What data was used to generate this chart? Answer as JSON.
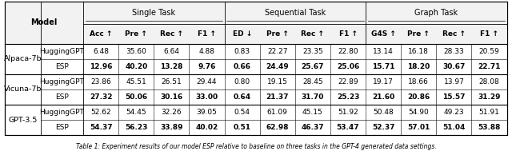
{
  "col_headers": [
    "Acc ↑",
    "Pre ↑",
    "Rec ↑",
    "F1 ↑",
    "ED ↓",
    "Pre ↑",
    "Rec ↑",
    "F1 ↑",
    "G4S ↑",
    "Pre ↑",
    "Rec ↑",
    "F1 ↑"
  ],
  "task_groups": [
    {
      "label": "Single Task",
      "start": 0,
      "end": 4
    },
    {
      "label": "Sequential Task",
      "start": 4,
      "end": 8
    },
    {
      "label": "Graph Task",
      "start": 8,
      "end": 12
    }
  ],
  "row_groups": [
    {
      "group": "Alpaca-7b",
      "rows": [
        {
          "model": "HuggingGPT",
          "bold": false,
          "values": [
            6.48,
            35.6,
            6.64,
            4.88,
            0.83,
            22.27,
            23.35,
            22.8,
            13.14,
            16.18,
            28.33,
            20.59
          ]
        },
        {
          "model": "ESP",
          "bold": true,
          "values": [
            12.96,
            40.2,
            13.28,
            9.76,
            0.66,
            24.49,
            25.67,
            25.06,
            15.71,
            18.2,
            30.67,
            22.71
          ]
        }
      ]
    },
    {
      "group": "Vicuna-7b",
      "rows": [
        {
          "model": "HuggingGPT",
          "bold": false,
          "values": [
            23.86,
            45.51,
            26.51,
            29.44,
            0.8,
            19.15,
            28.45,
            22.89,
            19.17,
            18.66,
            13.97,
            28.08
          ]
        },
        {
          "model": "ESP",
          "bold": true,
          "values": [
            27.32,
            50.06,
            30.16,
            33.0,
            0.64,
            21.37,
            31.7,
            25.23,
            21.6,
            20.86,
            15.57,
            31.29
          ]
        }
      ]
    },
    {
      "group": "GPT-3.5",
      "rows": [
        {
          "model": "HuggingGPT",
          "bold": false,
          "values": [
            52.62,
            54.45,
            32.26,
            39.05,
            0.54,
            61.09,
            45.15,
            51.92,
            50.48,
            54.9,
            49.23,
            51.91
          ]
        },
        {
          "model": "ESP",
          "bold": true,
          "values": [
            54.37,
            56.23,
            33.89,
            40.02,
            0.51,
            62.98,
            46.37,
            53.47,
            52.37,
            57.01,
            51.04,
            53.88
          ]
        }
      ]
    }
  ],
  "caption": "Table 1: Experiment results of our model ESP relative to baseline on three tasks in the GPT-4 generated data settings.",
  "font_size_data": 6.5,
  "font_size_header": 7.0,
  "font_size_group": 6.8,
  "font_size_caption": 5.5
}
